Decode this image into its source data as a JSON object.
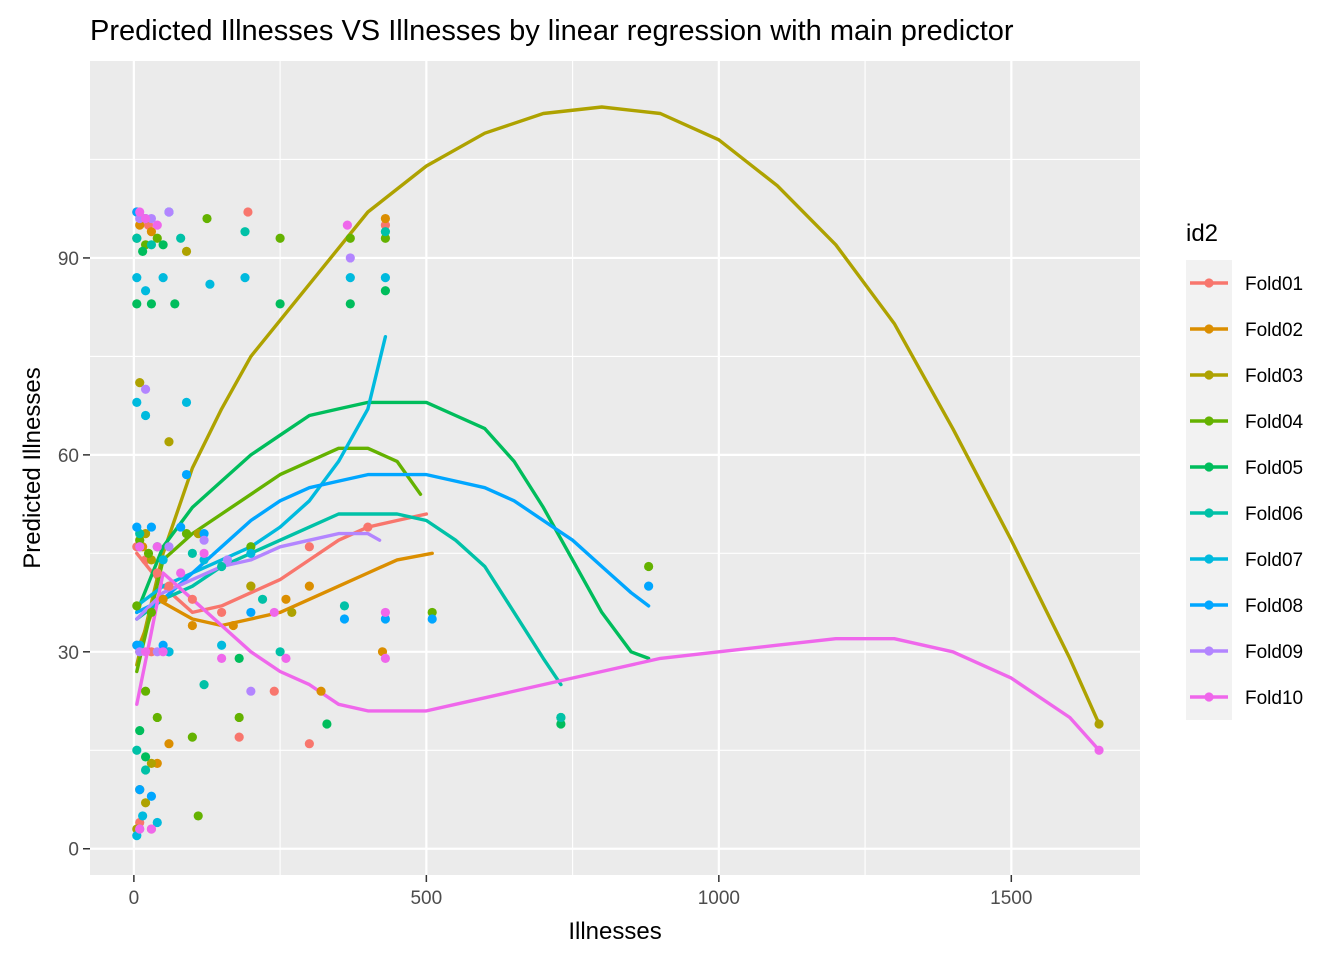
{
  "chart_data": {
    "type": "scatter",
    "title": "Predicted Illnesses VS Illnesses by linear regression with main predictor",
    "xlabel": "Illnesses",
    "ylabel": "Predicted Illnesses",
    "xlim": [
      -75,
      1720
    ],
    "ylim": [
      -4,
      120
    ],
    "xticks": [
      0,
      500,
      1000,
      1500
    ],
    "yticks": [
      0,
      30,
      60,
      90
    ],
    "xtick_labels": [
      "0",
      "500",
      "1000",
      "1500"
    ],
    "ytick_labels": [
      "0",
      "30",
      "60",
      "90"
    ],
    "grid": true,
    "legend": {
      "title": "id2",
      "placement": "right"
    },
    "series": [
      {
        "name": "Fold01",
        "color": "#F8766D",
        "points": [
          [
            5,
            97
          ],
          [
            15,
            96
          ],
          [
            25,
            95
          ],
          [
            195,
            97
          ],
          [
            430,
            95
          ],
          [
            5,
            46
          ],
          [
            20,
            44
          ],
          [
            40,
            42
          ],
          [
            60,
            40
          ],
          [
            100,
            38
          ],
          [
            150,
            36
          ],
          [
            200,
            40
          ],
          [
            300,
            46
          ],
          [
            400,
            49
          ],
          [
            5,
            31
          ],
          [
            30,
            30
          ],
          [
            180,
            17
          ],
          [
            240,
            24
          ],
          [
            300,
            16
          ],
          [
            10,
            4
          ],
          [
            30,
            3
          ]
        ],
        "curve": [
          [
            5,
            45
          ],
          [
            50,
            40
          ],
          [
            100,
            36
          ],
          [
            150,
            37
          ],
          [
            200,
            39
          ],
          [
            250,
            41
          ],
          [
            300,
            44
          ],
          [
            350,
            47
          ],
          [
            400,
            49
          ],
          [
            450,
            50
          ],
          [
            500,
            51
          ]
        ]
      },
      {
        "name": "Fold02",
        "color": "#DB8E00",
        "points": [
          [
            10,
            95
          ],
          [
            30,
            94
          ],
          [
            430,
            96
          ],
          [
            15,
            46
          ],
          [
            50,
            38
          ],
          [
            100,
            34
          ],
          [
            170,
            34
          ],
          [
            260,
            38
          ],
          [
            300,
            40
          ],
          [
            425,
            30
          ],
          [
            320,
            24
          ],
          [
            40,
            13
          ],
          [
            60,
            16
          ],
          [
            10,
            9
          ]
        ],
        "curve": [
          [
            5,
            30
          ],
          [
            40,
            38
          ],
          [
            100,
            35
          ],
          [
            150,
            34
          ],
          [
            200,
            35
          ],
          [
            250,
            36
          ],
          [
            300,
            38
          ],
          [
            350,
            40
          ],
          [
            400,
            42
          ],
          [
            450,
            44
          ],
          [
            510,
            45
          ]
        ]
      },
      {
        "name": "Fold03",
        "color": "#AEA200",
        "points": [
          [
            10,
            71
          ],
          [
            60,
            62
          ],
          [
            20,
            48
          ],
          [
            30,
            44
          ],
          [
            90,
            91
          ],
          [
            110,
            48
          ],
          [
            200,
            40
          ],
          [
            270,
            36
          ],
          [
            1650,
            19
          ],
          [
            30,
            13
          ],
          [
            20,
            7
          ],
          [
            5,
            3
          ]
        ],
        "curve": [
          [
            5,
            28
          ],
          [
            50,
            45
          ],
          [
            100,
            58
          ],
          [
            150,
            67
          ],
          [
            200,
            75
          ],
          [
            300,
            86
          ],
          [
            400,
            97
          ],
          [
            500,
            104
          ],
          [
            600,
            109
          ],
          [
            700,
            112
          ],
          [
            800,
            113
          ],
          [
            900,
            112
          ],
          [
            1000,
            108
          ],
          [
            1100,
            101
          ],
          [
            1200,
            92
          ],
          [
            1300,
            80
          ],
          [
            1400,
            64
          ],
          [
            1500,
            47
          ],
          [
            1600,
            29
          ],
          [
            1650,
            19
          ]
        ]
      },
      {
        "name": "Fold04",
        "color": "#64B200",
        "points": [
          [
            5,
            93
          ],
          [
            20,
            92
          ],
          [
            40,
            93
          ],
          [
            125,
            96
          ],
          [
            250,
            93
          ],
          [
            370,
            93
          ],
          [
            430,
            93
          ],
          [
            10,
            47
          ],
          [
            25,
            45
          ],
          [
            90,
            48
          ],
          [
            200,
            46
          ],
          [
            5,
            37
          ],
          [
            30,
            36
          ],
          [
            110,
            5
          ],
          [
            180,
            20
          ],
          [
            100,
            17
          ],
          [
            510,
            36
          ],
          [
            880,
            43
          ],
          [
            20,
            24
          ],
          [
            40,
            20
          ]
        ],
        "curve": [
          [
            5,
            27
          ],
          [
            50,
            44
          ],
          [
            100,
            48
          ],
          [
            150,
            51
          ],
          [
            200,
            54
          ],
          [
            250,
            57
          ],
          [
            300,
            59
          ],
          [
            350,
            61
          ],
          [
            400,
            61
          ],
          [
            450,
            59
          ],
          [
            490,
            54
          ]
        ]
      },
      {
        "name": "Fold05",
        "color": "#00BD5C",
        "points": [
          [
            5,
            83
          ],
          [
            30,
            83
          ],
          [
            70,
            83
          ],
          [
            250,
            83
          ],
          [
            370,
            83
          ],
          [
            430,
            85
          ],
          [
            15,
            91
          ],
          [
            50,
            92
          ],
          [
            60,
            30
          ],
          [
            180,
            29
          ],
          [
            330,
            19
          ],
          [
            730,
            20
          ],
          [
            730,
            19
          ],
          [
            10,
            18
          ],
          [
            20,
            14
          ]
        ],
        "curve": [
          [
            5,
            36
          ],
          [
            50,
            46
          ],
          [
            100,
            52
          ],
          [
            150,
            56
          ],
          [
            200,
            60
          ],
          [
            250,
            63
          ],
          [
            300,
            66
          ],
          [
            350,
            67
          ],
          [
            400,
            68
          ],
          [
            450,
            68
          ],
          [
            500,
            68
          ],
          [
            550,
            66
          ],
          [
            600,
            64
          ],
          [
            650,
            59
          ],
          [
            700,
            52
          ],
          [
            750,
            44
          ],
          [
            800,
            36
          ],
          [
            850,
            30
          ],
          [
            880,
            29
          ]
        ]
      },
      {
        "name": "Fold06",
        "color": "#00C1A7",
        "points": [
          [
            5,
            93
          ],
          [
            30,
            92
          ],
          [
            80,
            93
          ],
          [
            190,
            94
          ],
          [
            430,
            94
          ],
          [
            10,
            48
          ],
          [
            40,
            46
          ],
          [
            100,
            45
          ],
          [
            150,
            43
          ],
          [
            220,
            38
          ],
          [
            360,
            37
          ],
          [
            250,
            30
          ],
          [
            730,
            20
          ],
          [
            5,
            15
          ],
          [
            20,
            12
          ],
          [
            120,
            25
          ]
        ],
        "curve": [
          [
            5,
            35
          ],
          [
            50,
            38
          ],
          [
            100,
            40
          ],
          [
            150,
            43
          ],
          [
            200,
            45
          ],
          [
            250,
            47
          ],
          [
            300,
            49
          ],
          [
            350,
            51
          ],
          [
            400,
            51
          ],
          [
            450,
            51
          ],
          [
            500,
            50
          ],
          [
            550,
            47
          ],
          [
            600,
            43
          ],
          [
            650,
            36
          ],
          [
            700,
            29
          ],
          [
            730,
            25
          ]
        ]
      },
      {
        "name": "Fold07",
        "color": "#00BADE",
        "points": [
          [
            5,
            87
          ],
          [
            20,
            85
          ],
          [
            50,
            87
          ],
          [
            130,
            86
          ],
          [
            190,
            87
          ],
          [
            370,
            87
          ],
          [
            430,
            87
          ],
          [
            5,
            68
          ],
          [
            20,
            66
          ],
          [
            90,
            68
          ],
          [
            10,
            46
          ],
          [
            50,
            44
          ],
          [
            120,
            44
          ],
          [
            200,
            45
          ],
          [
            10,
            31
          ],
          [
            60,
            30
          ],
          [
            150,
            31
          ],
          [
            5,
            2
          ],
          [
            15,
            5
          ],
          [
            40,
            4
          ]
        ],
        "curve": [
          [
            5,
            37
          ],
          [
            50,
            40
          ],
          [
            100,
            42
          ],
          [
            150,
            44
          ],
          [
            200,
            46
          ],
          [
            250,
            49
          ],
          [
            300,
            53
          ],
          [
            350,
            59
          ],
          [
            400,
            67
          ],
          [
            430,
            78
          ]
        ]
      },
      {
        "name": "Fold08",
        "color": "#00A6FF",
        "points": [
          [
            5,
            97
          ],
          [
            20,
            96
          ],
          [
            60,
            97
          ],
          [
            90,
            57
          ],
          [
            5,
            49
          ],
          [
            30,
            49
          ],
          [
            80,
            49
          ],
          [
            120,
            48
          ],
          [
            5,
            31
          ],
          [
            50,
            31
          ],
          [
            200,
            36
          ],
          [
            360,
            35
          ],
          [
            430,
            35
          ],
          [
            510,
            35
          ],
          [
            880,
            40
          ],
          [
            10,
            9
          ],
          [
            30,
            8
          ]
        ],
        "curve": [
          [
            5,
            36
          ],
          [
            50,
            38
          ],
          [
            100,
            42
          ],
          [
            150,
            46
          ],
          [
            200,
            50
          ],
          [
            250,
            53
          ],
          [
            300,
            55
          ],
          [
            350,
            56
          ],
          [
            400,
            57
          ],
          [
            450,
            57
          ],
          [
            500,
            57
          ],
          [
            550,
            56
          ],
          [
            600,
            55
          ],
          [
            650,
            53
          ],
          [
            700,
            50
          ],
          [
            750,
            47
          ],
          [
            800,
            43
          ],
          [
            850,
            39
          ],
          [
            880,
            37
          ]
        ]
      },
      {
        "name": "Fold09",
        "color": "#B385FF",
        "points": [
          [
            10,
            96
          ],
          [
            30,
            96
          ],
          [
            60,
            97
          ],
          [
            370,
            90
          ],
          [
            20,
            70
          ],
          [
            60,
            46
          ],
          [
            120,
            47
          ],
          [
            160,
            44
          ],
          [
            10,
            30
          ],
          [
            40,
            30
          ],
          [
            200,
            24
          ],
          [
            10,
            3
          ]
        ],
        "curve": [
          [
            5,
            35
          ],
          [
            50,
            39
          ],
          [
            100,
            41
          ],
          [
            150,
            43
          ],
          [
            200,
            44
          ],
          [
            250,
            46
          ],
          [
            300,
            47
          ],
          [
            350,
            48
          ],
          [
            400,
            48
          ],
          [
            420,
            47
          ]
        ]
      },
      {
        "name": "Fold10",
        "color": "#EF67EB",
        "points": [
          [
            10,
            97
          ],
          [
            20,
            96
          ],
          [
            40,
            95
          ],
          [
            365,
            95
          ],
          [
            10,
            46
          ],
          [
            40,
            46
          ],
          [
            80,
            42
          ],
          [
            120,
            45
          ],
          [
            20,
            30
          ],
          [
            50,
            30
          ],
          [
            150,
            29
          ],
          [
            260,
            29
          ],
          [
            430,
            29
          ],
          [
            240,
            36
          ],
          [
            430,
            36
          ],
          [
            1650,
            15
          ],
          [
            10,
            3
          ],
          [
            30,
            3
          ]
        ],
        "curve": [
          [
            5,
            22
          ],
          [
            30,
            33
          ],
          [
            50,
            42
          ],
          [
            100,
            38
          ],
          [
            150,
            34
          ],
          [
            200,
            30
          ],
          [
            250,
            27
          ],
          [
            300,
            25
          ],
          [
            350,
            22
          ],
          [
            400,
            21
          ],
          [
            450,
            21
          ],
          [
            500,
            21
          ],
          [
            550,
            22
          ],
          [
            600,
            23
          ],
          [
            700,
            25
          ],
          [
            800,
            27
          ],
          [
            900,
            29
          ],
          [
            1000,
            30
          ],
          [
            1100,
            31
          ],
          [
            1200,
            32
          ],
          [
            1250,
            32
          ],
          [
            1300,
            32
          ],
          [
            1400,
            30
          ],
          [
            1500,
            26
          ],
          [
            1600,
            20
          ],
          [
            1650,
            15
          ]
        ]
      }
    ]
  }
}
